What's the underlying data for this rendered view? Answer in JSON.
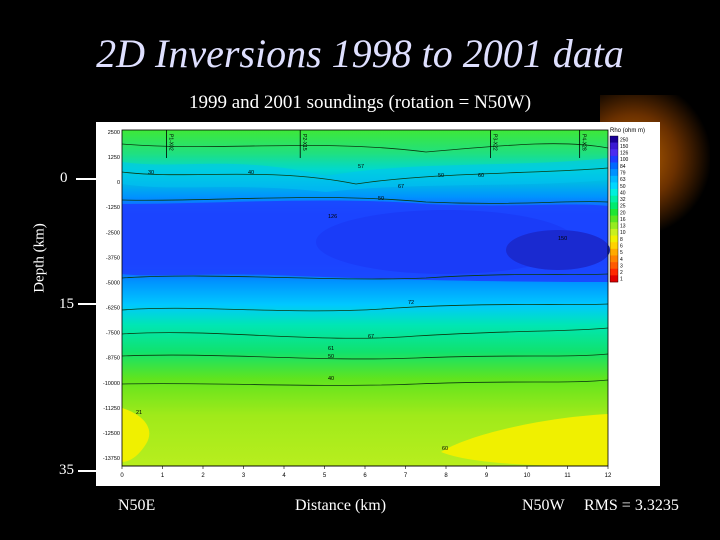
{
  "slide": {
    "title": "2D Inversions 1998 to 2001 data",
    "subtitle": "1999 and 2001 soundings (rotation = N50W)",
    "depth_label": "Depth (km)",
    "depth_ticks": [
      "0",
      "15",
      "35"
    ],
    "left_direction": "N50E",
    "distance_label": "Distance (km)",
    "right_direction": "N50W",
    "rms_label": "RMS = 3.3235"
  },
  "chart_data": {
    "type": "heatmap",
    "title": "1999 and 2001 soundings (rotation = N50W)",
    "xlabel": "Distance (km)",
    "ylabel": "Depth (km)",
    "x_ticks": [
      "0",
      "1",
      "2",
      "3",
      "4",
      "5",
      "6",
      "7",
      "8",
      "9",
      "10",
      "11",
      "12"
    ],
    "xlim": [
      0,
      12
    ],
    "y_ticks": [
      "2500",
      "1250",
      "0",
      "-1250",
      "-2500",
      "-3750",
      "-5000",
      "-6250",
      "-7500",
      "-8750",
      "-10000",
      "-11250",
      "-12500",
      "-13750"
    ],
    "colorbar_title": "Rho (ohm m)",
    "colorbar_ticks": [
      "250",
      "150",
      "126",
      "100",
      "84",
      "79",
      "63",
      "50",
      "40",
      "32",
      "25",
      "20",
      "16",
      "13",
      "10",
      "8",
      "6",
      "5",
      "4",
      "3",
      "2",
      "1"
    ],
    "colorbar_colors": [
      "#1a0096",
      "#3a1ad2",
      "#4b2cf0",
      "#1c3cff",
      "#0068ff",
      "#0092ff",
      "#00b9ff",
      "#00d7ff",
      "#00f0dc",
      "#00f0a5",
      "#00eb6e",
      "#1ee632",
      "#5ae61e",
      "#96eb1e",
      "#c8f01e",
      "#f0f000",
      "#ffd200",
      "#ffaa00",
      "#ff8200",
      "#ff5a00",
      "#ff2800",
      "#e10000"
    ],
    "station_labels": [
      "P1-X02",
      "P2-X15",
      "P3-X22",
      "P4-X28"
    ],
    "contour_labels": [
      "30",
      "40",
      "57",
      "50",
      "60",
      "67",
      "50",
      "126",
      "150",
      "72",
      "67",
      "61",
      "50",
      "40",
      "21",
      "60"
    ]
  }
}
